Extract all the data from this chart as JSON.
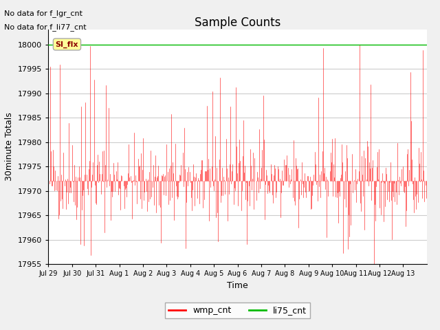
{
  "title": "Sample Counts",
  "ylabel": "30minute Totals",
  "xlabel": "Time",
  "annotation_lines": [
    "No data for f_lgr_cnt",
    "No data for f_li77_cnt"
  ],
  "si_flx_label": "SI_flx",
  "si_flx_value": 18000,
  "green_line_value": 18000,
  "x_tick_labels": [
    "Jul 29",
    "Jul 30",
    "Jul 31",
    "Aug 1",
    "Aug 2",
    "Aug 3",
    "Aug 4",
    "Aug 5",
    "Aug 6",
    "Aug 7",
    "Aug 8",
    "Aug 9",
    "Aug 10",
    "Aug 11",
    "Aug 12",
    "Aug 13"
  ],
  "ylim": [
    17955,
    18003
  ],
  "yticks": [
    17955,
    17960,
    17965,
    17970,
    17975,
    17980,
    17985,
    17990,
    17995,
    18000
  ],
  "wmp_cnt_color": "#ff0000",
  "li75_cnt_color": "#00bb00",
  "fig_bg_color": "#f0f0f0",
  "plot_bg_color": "#ffffff",
  "grid_color": "#cccccc",
  "title_fontsize": 12,
  "label_fontsize": 9,
  "tick_fontsize": 8,
  "seed": 42,
  "n_points": 500,
  "base_value": 17972,
  "noise_std": 4,
  "spike_prob": 0.06,
  "down_spike_prob": 0.04
}
